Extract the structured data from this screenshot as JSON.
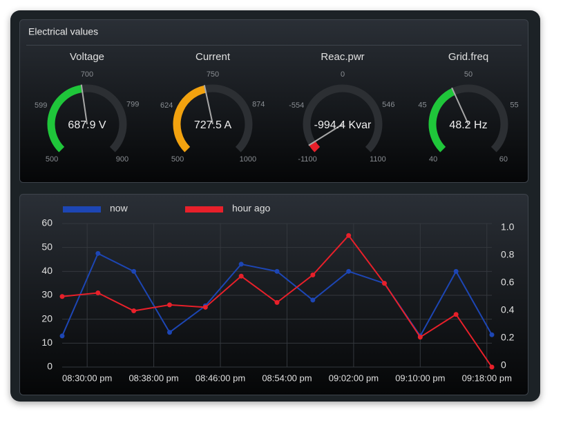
{
  "panel_title": "Electrical values",
  "gauges": [
    {
      "title": "Voltage",
      "value": 687.9,
      "value_label": "687.9 V",
      "lim": [
        500,
        900
      ],
      "ticks": [
        500,
        599,
        700,
        799,
        900
      ],
      "color": "#1fc63a"
    },
    {
      "title": "Current",
      "value": 727.5,
      "value_label": "727.5 A",
      "lim": [
        500,
        1000
      ],
      "ticks": [
        500,
        624,
        750,
        874,
        1000
      ],
      "color": "#f2a20f"
    },
    {
      "title": "Reac.pwr",
      "value": -994.4,
      "value_label": "-994.4 Kvar",
      "lim": [
        -1100,
        1100
      ],
      "ticks": [
        -1100,
        -554,
        0,
        546,
        1100
      ],
      "color": "#e8202a"
    },
    {
      "title": "Grid.freq",
      "value": 48.2,
      "value_label": "48.2 Hz",
      "lim": [
        40,
        60
      ],
      "ticks": [
        40,
        45,
        50,
        55,
        60
      ],
      "color": "#1fc63a"
    }
  ],
  "chart_data": {
    "type": "line",
    "x": [
      "08:27:00 pm",
      "08:31:18 pm",
      "08:35:36 pm",
      "08:39:54 pm",
      "08:44:12 pm",
      "08:48:30 pm",
      "08:52:48 pm",
      "08:57:06 pm",
      "09:01:24 pm",
      "09:05:42 pm",
      "09:10:00 pm",
      "09:14:18 pm",
      "09:18:36 pm"
    ],
    "series": [
      {
        "name": "now",
        "color": "#1d46b4",
        "values": [
          13,
          47.5,
          40,
          14.5,
          25.6,
          43,
          40,
          28,
          40,
          35,
          13,
          40,
          13.5
        ]
      },
      {
        "name": "hour ago",
        "color": "#e8202a",
        "values": [
          29.5,
          31,
          23.5,
          26,
          25,
          38,
          27,
          38.5,
          55,
          35,
          12.5,
          22,
          0
        ]
      }
    ],
    "xlim": [
      "08:27:00 pm",
      "09:18:36 pm"
    ],
    "xticks": [
      "08:30:00 pm",
      "08:38:00 pm",
      "08:46:00 pm",
      "08:54:00 pm",
      "09:02:00 pm",
      "09:10:00 pm",
      "09:18:00 pm"
    ],
    "ylim": [
      0,
      60
    ],
    "yticks": [
      0,
      10,
      20,
      30,
      40,
      50,
      60
    ],
    "y2lim": [
      0,
      1
    ],
    "y2ticks": [
      0,
      {
        "value": 0.2,
        "label": "0.2"
      },
      {
        "value": 0.4,
        "label": "0.4"
      },
      {
        "value": 0.6,
        "label": "0.6"
      },
      {
        "value": 0.8,
        "label": "0.8"
      },
      {
        "value": 1,
        "label": "1.0"
      }
    ],
    "grid": true
  }
}
